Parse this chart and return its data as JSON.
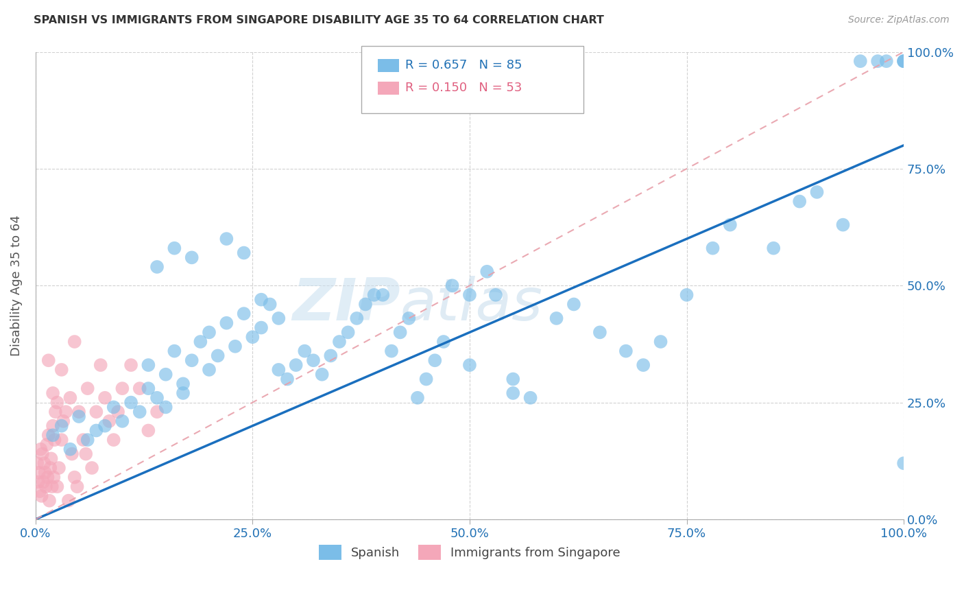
{
  "title": "SPANISH VS IMMIGRANTS FROM SINGAPORE DISABILITY AGE 35 TO 64 CORRELATION CHART",
  "source": "Source: ZipAtlas.com",
  "ylabel": "Disability Age 35 to 64",
  "xlim": [
    0,
    1.0
  ],
  "ylim": [
    0,
    1.0
  ],
  "xtick_labels": [
    "0.0%",
    "25.0%",
    "50.0%",
    "75.0%",
    "100.0%"
  ],
  "xtick_vals": [
    0.0,
    0.25,
    0.5,
    0.75,
    1.0
  ],
  "ytick_vals": [
    0.0,
    0.25,
    0.5,
    0.75,
    1.0
  ],
  "right_ytick_labels": [
    "0.0%",
    "25.0%",
    "50.0%",
    "75.0%",
    "100.0%"
  ],
  "legend_bottom_label1": "Spanish",
  "legend_bottom_label2": "Immigrants from Singapore",
  "blue_color": "#7bbde8",
  "pink_color": "#f4a7b9",
  "blue_line_color": "#1a6fbe",
  "pink_line_color": "#e8a0aa",
  "watermark_zip": "ZIP",
  "watermark_atlas": "atlas",
  "spanish_x": [
    0.02,
    0.03,
    0.04,
    0.05,
    0.06,
    0.07,
    0.08,
    0.09,
    0.1,
    0.11,
    0.12,
    0.13,
    0.13,
    0.14,
    0.15,
    0.15,
    0.16,
    0.17,
    0.17,
    0.18,
    0.19,
    0.2,
    0.2,
    0.21,
    0.22,
    0.23,
    0.24,
    0.25,
    0.26,
    0.27,
    0.28,
    0.29,
    0.3,
    0.31,
    0.32,
    0.33,
    0.34,
    0.35,
    0.36,
    0.37,
    0.38,
    0.39,
    0.4,
    0.41,
    0.42,
    0.43,
    0.44,
    0.45,
    0.46,
    0.47,
    0.48,
    0.5,
    0.52,
    0.53,
    0.55,
    0.57,
    0.6,
    0.62,
    0.65,
    0.68,
    0.7,
    0.72,
    0.75,
    0.78,
    0.8,
    0.85,
    0.88,
    0.9,
    0.93,
    0.95,
    0.97,
    0.98,
    1.0,
    1.0,
    1.0,
    1.0,
    0.14,
    0.16,
    0.18,
    0.22,
    0.24,
    0.26,
    0.28,
    0.5,
    0.55
  ],
  "spanish_y": [
    0.18,
    0.2,
    0.15,
    0.22,
    0.17,
    0.19,
    0.2,
    0.24,
    0.21,
    0.25,
    0.23,
    0.28,
    0.33,
    0.26,
    0.31,
    0.24,
    0.36,
    0.29,
    0.27,
    0.34,
    0.38,
    0.32,
    0.4,
    0.35,
    0.42,
    0.37,
    0.44,
    0.39,
    0.41,
    0.46,
    0.43,
    0.3,
    0.33,
    0.36,
    0.34,
    0.31,
    0.35,
    0.38,
    0.4,
    0.43,
    0.46,
    0.48,
    0.48,
    0.36,
    0.4,
    0.43,
    0.26,
    0.3,
    0.34,
    0.38,
    0.5,
    0.33,
    0.53,
    0.48,
    0.3,
    0.26,
    0.43,
    0.46,
    0.4,
    0.36,
    0.33,
    0.38,
    0.48,
    0.58,
    0.63,
    0.58,
    0.68,
    0.7,
    0.63,
    0.98,
    0.98,
    0.98,
    0.98,
    0.98,
    0.98,
    0.12,
    0.54,
    0.58,
    0.56,
    0.6,
    0.57,
    0.47,
    0.32,
    0.48,
    0.27
  ],
  "singapore_x": [
    0.002,
    0.003,
    0.004,
    0.005,
    0.006,
    0.007,
    0.008,
    0.009,
    0.01,
    0.011,
    0.012,
    0.013,
    0.014,
    0.015,
    0.016,
    0.017,
    0.018,
    0.019,
    0.02,
    0.021,
    0.022,
    0.023,
    0.025,
    0.027,
    0.03,
    0.032,
    0.035,
    0.038,
    0.04,
    0.042,
    0.045,
    0.048,
    0.05,
    0.055,
    0.058,
    0.06,
    0.065,
    0.07,
    0.075,
    0.08,
    0.085,
    0.09,
    0.095,
    0.1,
    0.11,
    0.12,
    0.13,
    0.14,
    0.015,
    0.02,
    0.025,
    0.03,
    0.045
  ],
  "singapore_y": [
    0.12,
    0.08,
    0.1,
    0.06,
    0.15,
    0.05,
    0.14,
    0.08,
    0.12,
    0.1,
    0.07,
    0.16,
    0.09,
    0.18,
    0.04,
    0.11,
    0.13,
    0.07,
    0.2,
    0.09,
    0.17,
    0.23,
    0.07,
    0.11,
    0.17,
    0.21,
    0.23,
    0.04,
    0.26,
    0.14,
    0.09,
    0.07,
    0.23,
    0.17,
    0.14,
    0.28,
    0.11,
    0.23,
    0.33,
    0.26,
    0.21,
    0.17,
    0.23,
    0.28,
    0.33,
    0.28,
    0.19,
    0.23,
    0.34,
    0.27,
    0.25,
    0.32,
    0.38
  ],
  "blue_line_x0": 0.0,
  "blue_line_y0": 0.0,
  "blue_line_x1": 1.0,
  "blue_line_y1": 0.8,
  "pink_line_x0": 0.0,
  "pink_line_y0": 0.0,
  "pink_line_x1": 1.0,
  "pink_line_y1": 1.0
}
